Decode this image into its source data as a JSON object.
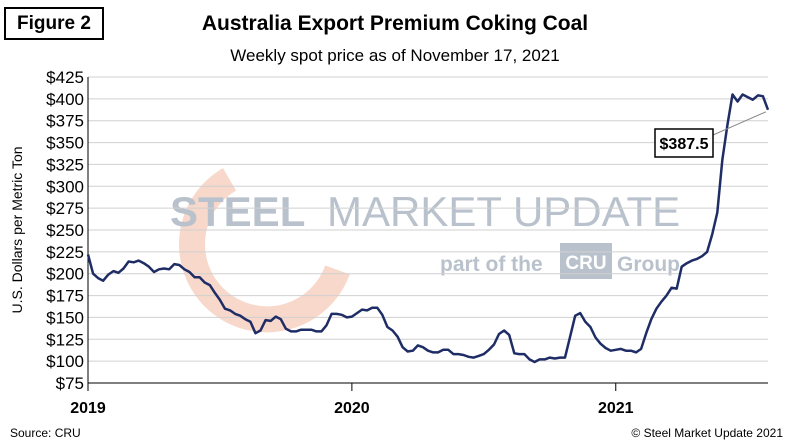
{
  "figure_label": "Figure 2",
  "source": "Source: CRU",
  "copyright": "© Steel Market Update 2021",
  "watermark": {
    "brand": "STEEL MARKET UPDATE",
    "brand_bold": "STEEL",
    "brand_rest": "MARKET UPDATE",
    "tagline_pre": "part of the",
    "tagline_box": "CRU",
    "tagline_post": "Group",
    "colors": {
      "text": "#b9c2cc",
      "arc": "#f4c7b4"
    }
  },
  "chart_data": {
    "type": "line",
    "title": "Australia Export Premium Coking Coal",
    "subtitle": "Weekly spot price as of November 17, 2021",
    "xlabel": "",
    "ylabel": "U.S. Dollars per Metric Ton",
    "ylim": [
      75,
      425
    ],
    "ytick_step": 25,
    "yticks": [
      "$75",
      "$100",
      "$125",
      "$150",
      "$175",
      "$200",
      "$225",
      "$250",
      "$275",
      "$300",
      "$325",
      "$350",
      "$375",
      "$400",
      "$425"
    ],
    "xticks": [
      {
        "label": "2019",
        "week": 0
      },
      {
        "label": "2020",
        "week": 52
      },
      {
        "label": "2021",
        "week": 104
      }
    ],
    "grid": true,
    "line_color": "#1f2d66",
    "annotation": {
      "text": "$387.5",
      "value": 387.5
    },
    "series": [
      {
        "values": [
          222,
          200,
          195,
          192,
          199,
          203,
          201,
          206,
          214,
          213,
          215,
          212,
          208,
          202,
          205,
          206,
          205,
          211,
          210,
          205,
          202,
          196,
          196,
          190,
          187,
          178,
          170,
          160,
          158,
          154,
          152,
          148,
          145,
          132,
          135,
          147,
          146,
          151,
          148,
          137,
          134,
          134,
          136,
          136,
          136,
          134,
          134,
          141,
          154,
          154,
          153,
          150,
          151,
          155,
          159,
          158,
          161,
          161,
          153,
          139,
          135,
          128,
          116,
          111,
          112,
          118,
          116,
          112,
          110,
          110,
          113,
          113,
          108,
          108,
          107,
          105,
          104,
          106,
          108,
          113,
          119,
          131,
          135,
          130,
          109,
          108,
          108,
          102,
          99,
          102,
          102,
          104,
          103,
          104,
          104,
          128,
          152,
          155,
          145,
          139,
          127,
          120,
          115,
          112,
          113,
          114,
          112,
          112,
          110,
          114,
          132,
          148,
          160,
          168,
          175,
          184,
          183,
          208,
          212,
          215,
          217,
          220,
          225,
          245,
          270,
          330,
          370,
          405,
          397,
          405,
          402,
          399,
          404,
          403,
          387.5
        ]
      }
    ]
  }
}
